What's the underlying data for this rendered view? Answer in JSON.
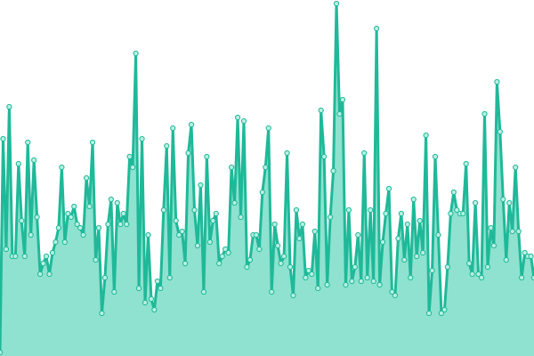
{
  "chart_data": {
    "type": "area",
    "color": "#1fb999",
    "fill": "#8ee2cf",
    "ylim": [
      0,
      100
    ],
    "values": [
      1,
      61,
      30,
      70,
      28,
      28,
      54,
      38,
      28,
      60,
      34,
      55,
      39,
      23,
      26,
      28,
      23,
      29,
      32,
      36,
      53,
      32,
      40,
      39,
      42,
      37,
      36,
      34,
      50,
      42,
      60,
      27,
      36,
      12,
      22,
      37,
      44,
      18,
      43,
      37,
      40,
      37,
      56,
      53,
      85,
      19,
      61,
      15,
      34,
      16,
      13,
      21,
      19,
      41,
      59,
      22,
      64,
      38,
      34,
      35,
      26,
      57,
      65,
      41,
      31,
      48,
      18,
      56,
      32,
      38,
      40,
      26,
      28,
      30,
      29,
      53,
      43,
      67,
      39,
      66,
      25,
      27,
      34,
      34,
      30,
      46,
      53,
      64,
      18,
      37,
      31,
      26,
      28,
      57,
      25,
      17,
      41,
      33,
      37,
      22,
      24,
      23,
      35,
      19,
      69,
      56,
      20,
      39,
      52,
      99,
      68,
      72,
      20,
      41,
      21,
      25,
      34,
      21,
      57,
      22,
      41,
      21,
      92,
      20,
      32,
      40,
      47,
      18,
      17,
      33,
      40,
      27,
      37,
      22,
      44,
      28,
      38,
      29,
      62,
      12,
      24,
      56,
      34,
      12,
      13,
      25,
      40,
      46,
      41,
      40,
      40,
      54,
      26,
      23,
      43,
      23,
      22,
      68,
      25,
      36,
      31,
      77,
      63,
      44,
      27,
      43,
      35,
      53,
      35,
      22,
      29,
      28,
      28,
      22
    ]
  }
}
